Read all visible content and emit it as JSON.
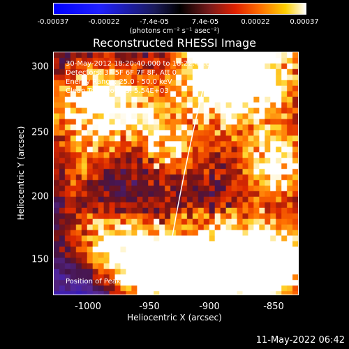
{
  "colorbar": {
    "ticks": [
      "-0.00037",
      "-0.00022",
      "-7.4e-05",
      "7.4e-05",
      "0.00022",
      "0.00037"
    ],
    "units": "(photons cm⁻² s⁻¹ asec⁻²)"
  },
  "title": "Reconstructed RHESSI Image",
  "info": {
    "line1": "30-May-2012 18:20:40.000 to 18:22:40.000",
    "line2": "Detectors: 3F 5F 6F 7F 8F, Att 0",
    "line3": "Energy Range: 25.0 - 50.0 keV",
    "line4": "Clean    Total counts: 5.54E+03",
    "peak": "Position of Peak = [-901,302]"
  },
  "axes": {
    "xlabel": "Heliocentric X (arcsec)",
    "ylabel": "Heliocentric Y (arcsec)",
    "xticks": [
      "-1000",
      "-950",
      "-900",
      "-850"
    ],
    "yticks": [
      "300",
      "250",
      "200",
      "150"
    ]
  },
  "timestamp": "11-May-2022 06:42",
  "colors": {
    "background": "#000000",
    "limb": "#ffffff"
  }
}
